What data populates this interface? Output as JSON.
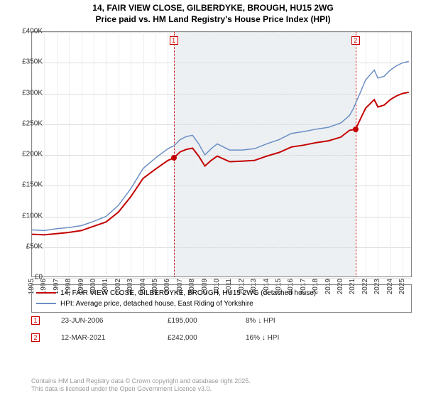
{
  "title_line1": "14, FAIR VIEW CLOSE, GILBERDYKE, BROUGH, HU15 2WG",
  "title_line2": "Price paid vs. HM Land Registry's House Price Index (HPI)",
  "chart": {
    "type": "line",
    "x_min": 1995,
    "x_max": 2025.8,
    "y_min": 0,
    "y_max": 400000,
    "y_ticks": [
      0,
      50000,
      100000,
      150000,
      200000,
      250000,
      300000,
      350000,
      400000
    ],
    "y_tick_labels": [
      "£0",
      "£50K",
      "£100K",
      "£150K",
      "£200K",
      "£250K",
      "£300K",
      "£350K",
      "£400K"
    ],
    "x_ticks": [
      1995,
      1996,
      1997,
      1998,
      1999,
      2000,
      2001,
      2002,
      2003,
      2004,
      2005,
      2006,
      2007,
      2008,
      2009,
      2010,
      2011,
      2012,
      2013,
      2014,
      2015,
      2016,
      2017,
      2018,
      2019,
      2020,
      2021,
      2022,
      2023,
      2024,
      2025
    ],
    "shade_from": 2006.47,
    "shade_to": 2021.2,
    "grid_color": "#dddddd",
    "background_color": "#ffffff",
    "series": [
      {
        "name": "hpi",
        "color": "#6b8fc6",
        "width": 1.5,
        "points": [
          [
            1995,
            78000
          ],
          [
            1996,
            77000
          ],
          [
            1997,
            80000
          ],
          [
            1998,
            82000
          ],
          [
            1999,
            85000
          ],
          [
            2000,
            92000
          ],
          [
            2001,
            100000
          ],
          [
            2002,
            118000
          ],
          [
            2003,
            145000
          ],
          [
            2004,
            178000
          ],
          [
            2005,
            195000
          ],
          [
            2006,
            210000
          ],
          [
            2006.5,
            215000
          ],
          [
            2007,
            225000
          ],
          [
            2007.5,
            230000
          ],
          [
            2008,
            232000
          ],
          [
            2008.5,
            218000
          ],
          [
            2009,
            200000
          ],
          [
            2009.5,
            210000
          ],
          [
            2010,
            218000
          ],
          [
            2011,
            208000
          ],
          [
            2012,
            208000
          ],
          [
            2013,
            210000
          ],
          [
            2014,
            218000
          ],
          [
            2015,
            225000
          ],
          [
            2016,
            235000
          ],
          [
            2017,
            238000
          ],
          [
            2018,
            242000
          ],
          [
            2019,
            245000
          ],
          [
            2020,
            252000
          ],
          [
            2020.7,
            264000
          ],
          [
            2021,
            275000
          ],
          [
            2021.5,
            298000
          ],
          [
            2022,
            322000
          ],
          [
            2022.7,
            338000
          ],
          [
            2023,
            325000
          ],
          [
            2023.5,
            328000
          ],
          [
            2024,
            338000
          ],
          [
            2024.5,
            345000
          ],
          [
            2025,
            350000
          ],
          [
            2025.5,
            352000
          ]
        ]
      },
      {
        "name": "property",
        "color": "#c40000",
        "width": 2,
        "points": [
          [
            1995,
            71000
          ],
          [
            1996,
            70000
          ],
          [
            1997,
            72000
          ],
          [
            1998,
            74000
          ],
          [
            1999,
            77000
          ],
          [
            2000,
            84000
          ],
          [
            2001,
            91000
          ],
          [
            2002,
            107000
          ],
          [
            2003,
            132000
          ],
          [
            2004,
            162000
          ],
          [
            2005,
            177000
          ],
          [
            2006,
            191000
          ],
          [
            2006.47,
            195000
          ],
          [
            2007,
            205000
          ],
          [
            2007.5,
            209000
          ],
          [
            2008,
            211000
          ],
          [
            2008.5,
            198000
          ],
          [
            2009,
            182000
          ],
          [
            2009.5,
            191000
          ],
          [
            2010,
            198000
          ],
          [
            2011,
            189000
          ],
          [
            2012,
            190000
          ],
          [
            2013,
            191000
          ],
          [
            2014,
            198000
          ],
          [
            2015,
            204000
          ],
          [
            2016,
            213000
          ],
          [
            2017,
            216000
          ],
          [
            2018,
            220000
          ],
          [
            2019,
            223000
          ],
          [
            2020,
            229000
          ],
          [
            2020.7,
            240000
          ],
          [
            2021.2,
            242000
          ],
          [
            2021.5,
            255000
          ],
          [
            2022,
            276000
          ],
          [
            2022.7,
            290000
          ],
          [
            2023,
            278000
          ],
          [
            2023.5,
            281000
          ],
          [
            2024,
            290000
          ],
          [
            2024.5,
            296000
          ],
          [
            2025,
            300000
          ],
          [
            2025.5,
            302000
          ]
        ]
      }
    ],
    "markers": [
      {
        "n": "1",
        "x": 2006.47,
        "y": 195000,
        "color": "#c40000"
      },
      {
        "n": "2",
        "x": 2021.2,
        "y": 242000,
        "color": "#c40000"
      }
    ]
  },
  "legend": [
    {
      "color": "#c40000",
      "label": "14, FAIR VIEW CLOSE, GILBERDYKE, BROUGH, HU15 2WG (detached house)"
    },
    {
      "color": "#6b8fc6",
      "label": "HPI: Average price, detached house, East Riding of Yorkshire"
    }
  ],
  "sales": [
    {
      "n": "1",
      "date": "23-JUN-2006",
      "price": "£195,000",
      "diff": "8% ↓ HPI"
    },
    {
      "n": "2",
      "date": "12-MAR-2021",
      "price": "£242,000",
      "diff": "16% ↓ HPI"
    }
  ],
  "attribution_line1": "Contains HM Land Registry data © Crown copyright and database right 2025.",
  "attribution_line2": "This data is licensed under the Open Government Licence v3.0."
}
